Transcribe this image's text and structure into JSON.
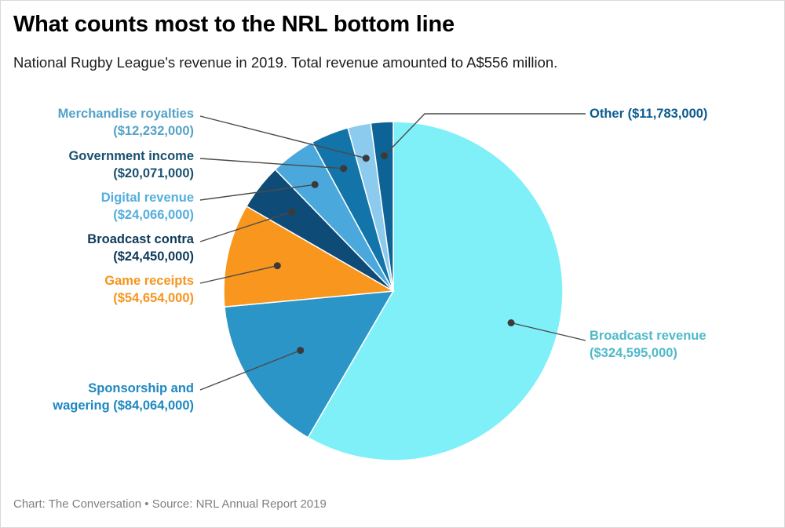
{
  "header": {
    "title": "What counts most to the NRL bottom line",
    "subtitle": "National Rugby League's revenue in 2019. Total revenue amounted to A$556 million."
  },
  "footer": {
    "credit": "Chart: The Conversation • Source: NRL Annual Report 2019"
  },
  "chart_data": {
    "type": "pie",
    "title": "What counts most to the NRL bottom line",
    "total_revenue_text": "A$556 million",
    "legend_position": "callout-labels",
    "slices": [
      {
        "name": "Broadcast revenue",
        "value": 324595000,
        "color": "#7ff0f8",
        "label_color": "#4fb9ca",
        "label_line1": "Broadcast revenue",
        "label_line2": "($324,595,000)"
      },
      {
        "name": "Sponsorship and wagering",
        "value": 84064000,
        "color": "#2b95c8",
        "label_color": "#1d87c0",
        "label_line1": "Sponsorship and",
        "label_line2": "wagering ($84,064,000)"
      },
      {
        "name": "Game receipts",
        "value": 54654000,
        "color": "#f8961e",
        "label_color": "#f7941d",
        "label_line1": "Game receipts",
        "label_line2": "($54,654,000)"
      },
      {
        "name": "Broadcast contra",
        "value": 24450000,
        "color": "#0e4c77",
        "label_color": "#0d3a5a",
        "label_line1": "Broadcast contra",
        "label_line2": "($24,450,000)"
      },
      {
        "name": "Digital revenue",
        "value": 24066000,
        "color": "#4aa8dd",
        "label_color": "#54aede",
        "label_line1": "Digital revenue",
        "label_line2": "($24,066,000)"
      },
      {
        "name": "Government income",
        "value": 20071000,
        "color": "#1274a9",
        "label_color": "#1a506f",
        "label_line1": "Government income",
        "label_line2": "($20,071,000)"
      },
      {
        "name": "Merchandise royalties",
        "value": 12232000,
        "color": "#8ccaee",
        "label_color": "#54a2c9",
        "label_line1": "Merchandise royalties",
        "label_line2": "($12,232,000)"
      },
      {
        "name": "Other",
        "value": 11783000,
        "color": "#0d6396",
        "label_color": "#0c5c8f",
        "label_line1": "Other ($11,783,000)",
        "label_line2": ""
      }
    ]
  }
}
